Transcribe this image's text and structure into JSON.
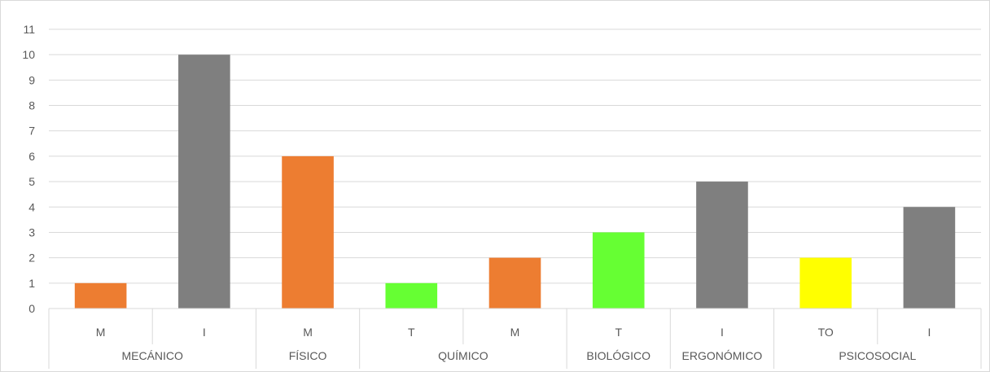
{
  "chart_data": {
    "type": "bar",
    "ylim": [
      0,
      11
    ],
    "y_ticks": [
      0,
      1,
      2,
      3,
      4,
      5,
      6,
      7,
      8,
      9,
      10,
      11
    ],
    "grid": true,
    "groups": [
      {
        "label": "MECÁNICO",
        "categories": [
          "M",
          "I"
        ]
      },
      {
        "label": "FÍSICO",
        "categories": [
          "M"
        ]
      },
      {
        "label": "QUÍMICO",
        "categories": [
          "T",
          "M"
        ]
      },
      {
        "label": "BIOLÓGICO",
        "categories": [
          "T"
        ]
      },
      {
        "label": "ERGONÓMICO",
        "categories": [
          "I"
        ]
      },
      {
        "label": "PSICOSOCIAL",
        "categories": [
          "TO",
          "I"
        ]
      }
    ],
    "categories": [
      "M",
      "I",
      "M",
      "T",
      "M",
      "T",
      "I",
      "TO",
      "I"
    ],
    "values": [
      1,
      10,
      6,
      1,
      2,
      3,
      5,
      2,
      4
    ],
    "bar_colors": [
      "#ed7d31",
      "#7f7f7f",
      "#ed7d31",
      "#66ff33",
      "#ed7d31",
      "#66ff33",
      "#7f7f7f",
      "#ffff00",
      "#7f7f7f"
    ]
  }
}
